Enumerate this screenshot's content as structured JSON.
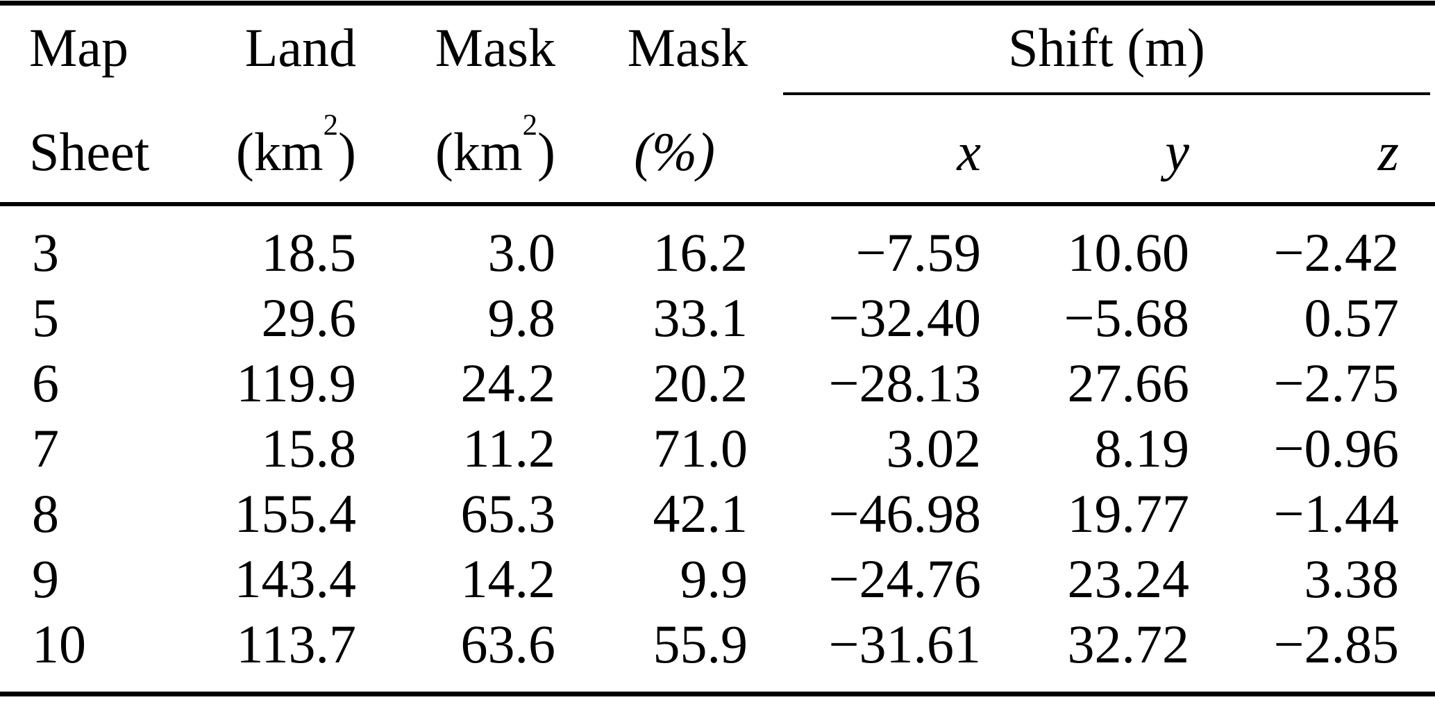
{
  "page": {
    "background": "#ffffff",
    "text_color": "#000000"
  },
  "table": {
    "headers": {
      "row1": {
        "map": "Map",
        "land": "Land",
        "mask_area": "Mask",
        "mask_pct": "Mask",
        "shift_group": "Shift (m)"
      },
      "row2": {
        "sheet": "Sheet",
        "land_unit_open": "(km",
        "land_unit_sup": "2",
        "land_unit_close": ")",
        "mask_unit_open": "(km",
        "mask_unit_sup": "2",
        "mask_unit_close": ")",
        "pct_unit": "(%)",
        "x": "x",
        "y": "y",
        "z": "z"
      }
    },
    "rows": [
      {
        "sheet": "3",
        "land": "18.5",
        "mask_km2": "3.0",
        "mask_pct": "16.2",
        "shift_x": "−7.59",
        "shift_y": "10.60",
        "shift_z": "−2.42"
      },
      {
        "sheet": "5",
        "land": "29.6",
        "mask_km2": "9.8",
        "mask_pct": "33.1",
        "shift_x": "−32.40",
        "shift_y": "−5.68",
        "shift_z": "0.57"
      },
      {
        "sheet": "6",
        "land": "119.9",
        "mask_km2": "24.2",
        "mask_pct": "20.2",
        "shift_x": "−28.13",
        "shift_y": "27.66",
        "shift_z": "−2.75"
      },
      {
        "sheet": "7",
        "land": "15.8",
        "mask_km2": "11.2",
        "mask_pct": "71.0",
        "shift_x": "3.02",
        "shift_y": "8.19",
        "shift_z": "−0.96"
      },
      {
        "sheet": "8",
        "land": "155.4",
        "mask_km2": "65.3",
        "mask_pct": "42.1",
        "shift_x": "−46.98",
        "shift_y": "19.77",
        "shift_z": "−1.44"
      },
      {
        "sheet": "9",
        "land": "143.4",
        "mask_km2": "14.2",
        "mask_pct": "9.9",
        "shift_x": "−24.76",
        "shift_y": "23.24",
        "shift_z": "3.38"
      },
      {
        "sheet": "10",
        "land": "113.7",
        "mask_km2": "63.6",
        "mask_pct": "55.9",
        "shift_x": "−31.61",
        "shift_y": "32.72",
        "shift_z": "−2.85"
      }
    ]
  }
}
